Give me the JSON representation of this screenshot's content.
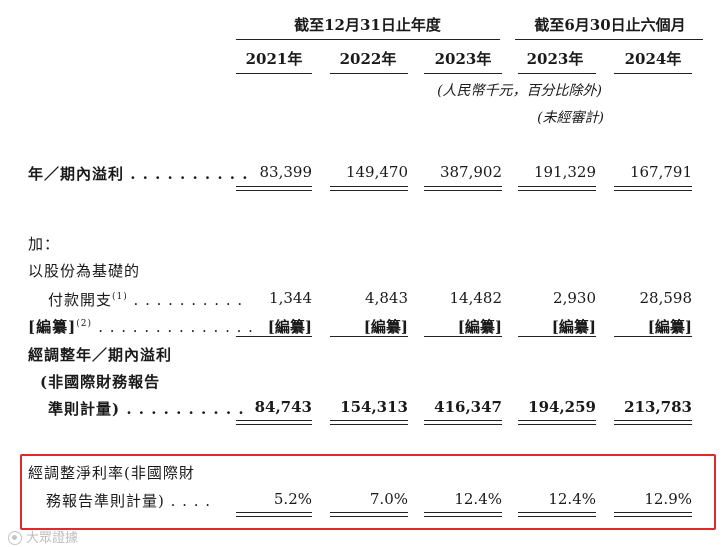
{
  "header": {
    "group_annual": "截至12月31日止年度",
    "group_six_month": "截至6月30日止六個月",
    "years": [
      "2021年",
      "2022年",
      "2023年",
      "2023年",
      "2024年"
    ],
    "unit_note": "(人民幣千元，百分比除外)",
    "unaudited_note": "(未經審計)"
  },
  "rows": {
    "profit": {
      "label": "年／期內溢利 . . . . . . . . . .",
      "values": [
        "83,399",
        "149,470",
        "387,902",
        "191,329",
        "167,791"
      ]
    },
    "add": {
      "label": "加："
    },
    "share_based": {
      "label_line1": "以股份為基礎的",
      "label_line2": "付款開支",
      "footnote": "(1)",
      "dots": ". . . . . . . . . .",
      "values": [
        "1,344",
        "4,843",
        "14,482",
        "2,930",
        "28,598"
      ]
    },
    "redacted": {
      "label": "[編纂]",
      "footnote": "(2)",
      "dots": ". . . . . . . . . . . . . .",
      "values": [
        "[編纂]",
        "[編纂]",
        "[編纂]",
        "[編纂]",
        "[編纂]"
      ]
    },
    "adjusted_profit": {
      "label_line1": "經調整年／期內溢利",
      "label_line2": "(非國際財務報告",
      "label_line3": "準則計量) . . . . . . . . . .",
      "values": [
        "84,743",
        "154,313",
        "416,347",
        "194,259",
        "213,783"
      ]
    },
    "adjusted_margin": {
      "label_line1": "經調整淨利率(非國際財",
      "label_line2": "務報告準則計量) . . . .",
      "values": [
        "5.2%",
        "7.0%",
        "12.4%",
        "12.4%",
        "12.9%"
      ]
    }
  },
  "watermark": "大眾證據",
  "colors": {
    "highlight_box": "#e02a2a",
    "text": "#1a1a1a"
  }
}
